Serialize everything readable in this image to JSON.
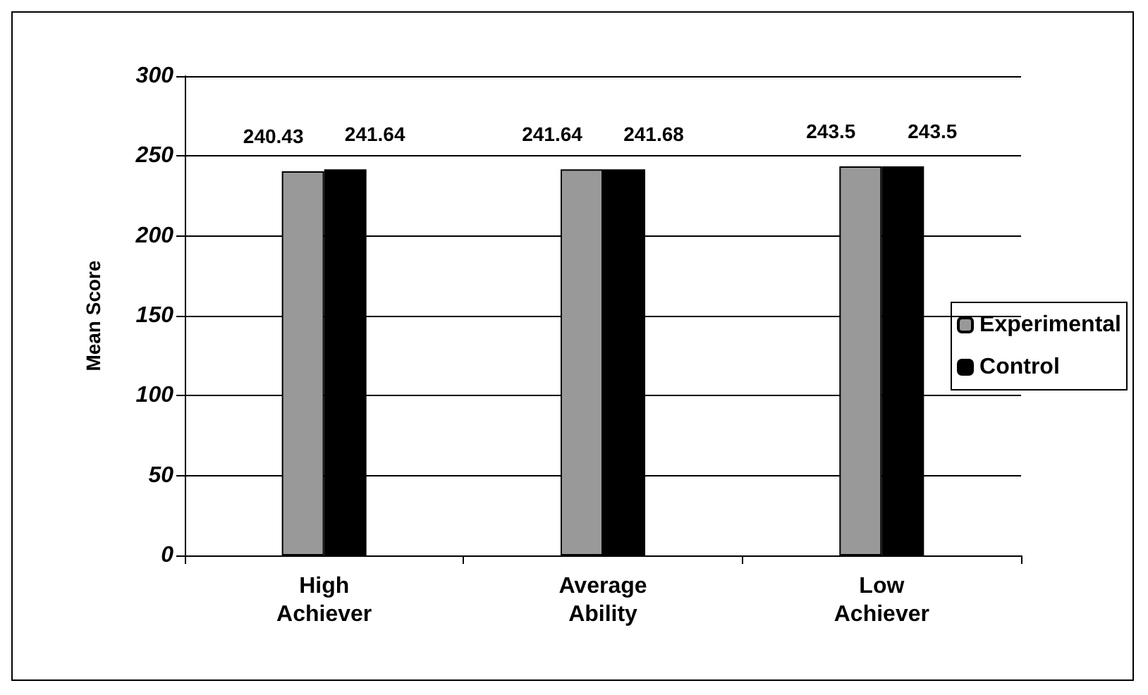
{
  "chart_data": {
    "type": "bar",
    "ylabel": "Mean Score",
    "categories": [
      "High\nAchiever",
      "Average\nAbility",
      "Low\nAchiever"
    ],
    "series": [
      {
        "name": "Experimental",
        "color": "#999999",
        "values": [
          240.43,
          241.64,
          243.5
        ]
      },
      {
        "name": "Control",
        "color": "#000000",
        "values": [
          241.64,
          241.68,
          243.5
        ]
      }
    ],
    "ylim": [
      0,
      300
    ],
    "yticks": [
      0,
      50,
      100,
      150,
      200,
      250,
      300
    ],
    "grid": "y",
    "legend": "right",
    "data_labels": true
  }
}
